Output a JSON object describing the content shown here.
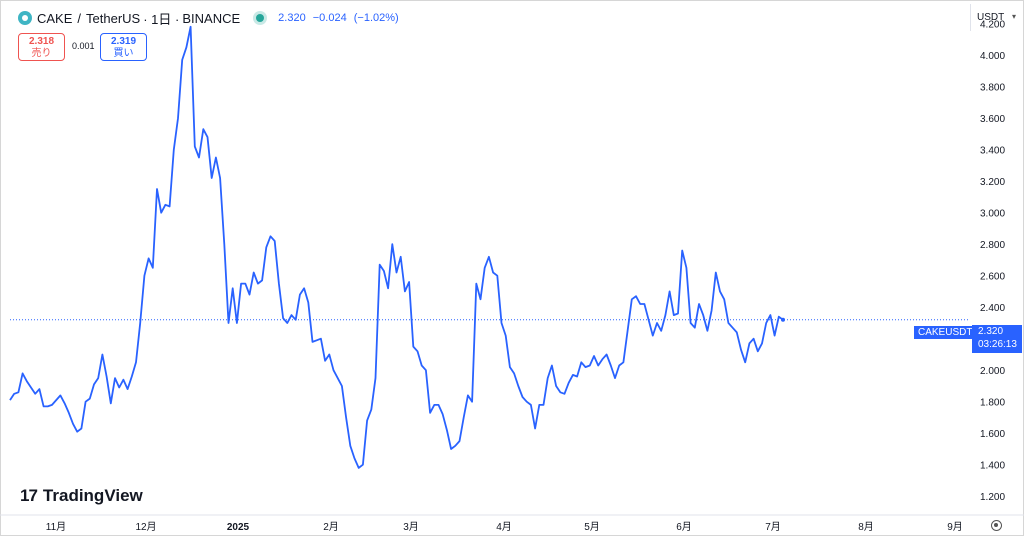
{
  "header": {
    "symbol": "CAKE",
    "separator": "/",
    "quote": "TetherUS",
    "interval": "· 1日 ·",
    "exchange": "BINANCE",
    "price": "2.320",
    "change": "−0.024",
    "change_pct": "(−1.02%)"
  },
  "trade": {
    "sell_price": "2.318",
    "sell_label": "売り",
    "spread": "0.001",
    "buy_price": "2.319",
    "buy_label": "買い"
  },
  "currency": "USDT",
  "brand": "TradingView",
  "last": {
    "label": "CAKEUSDT",
    "price": "2.320",
    "countdown": "03:26:13"
  },
  "colors": {
    "line": "#2962ff",
    "sell": "#ef5350",
    "buy": "#2962ff"
  },
  "chart_data": {
    "type": "line",
    "ylim": [
      1.1,
      4.35
    ],
    "yticks": [
      "4.200",
      "4.000",
      "3.800",
      "3.600",
      "3.400",
      "3.200",
      "3.000",
      "2.800",
      "2.600",
      "2.400",
      "2.200",
      "2.000",
      "1.800",
      "1.600",
      "1.400",
      "1.200"
    ],
    "xticks": [
      "11月",
      "12月",
      "2025",
      "2月",
      "3月",
      "4月",
      "5月",
      "6月",
      "7月",
      "8月",
      "9月"
    ],
    "series": [
      {
        "values": [
          [
            0,
            1.81
          ],
          [
            1,
            1.85
          ],
          [
            2,
            1.86
          ],
          [
            3,
            1.98
          ],
          [
            4,
            1.93
          ],
          [
            5,
            1.89
          ],
          [
            6,
            1.85
          ],
          [
            7,
            1.88
          ],
          [
            8,
            1.77
          ],
          [
            9,
            1.77
          ],
          [
            10,
            1.78
          ],
          [
            11,
            1.81
          ],
          [
            12,
            1.84
          ],
          [
            13,
            1.79
          ],
          [
            14,
            1.73
          ],
          [
            15,
            1.66
          ],
          [
            16,
            1.61
          ],
          [
            17,
            1.63
          ],
          [
            18,
            1.8
          ],
          [
            19,
            1.82
          ],
          [
            20,
            1.91
          ],
          [
            21,
            1.95
          ],
          [
            22,
            2.1
          ],
          [
            23,
            1.96
          ],
          [
            24,
            1.79
          ],
          [
            25,
            1.95
          ],
          [
            26,
            1.89
          ],
          [
            27,
            1.94
          ],
          [
            28,
            1.88
          ],
          [
            29,
            1.96
          ],
          [
            30,
            2.05
          ],
          [
            31,
            2.3
          ],
          [
            32,
            2.6
          ],
          [
            33,
            2.71
          ],
          [
            34,
            2.65
          ],
          [
            35,
            3.15
          ],
          [
            36,
            3.0
          ],
          [
            37,
            3.05
          ],
          [
            38,
            3.04
          ],
          [
            39,
            3.4
          ],
          [
            40,
            3.6
          ],
          [
            41,
            3.97
          ],
          [
            42,
            4.05
          ],
          [
            43,
            4.18
          ],
          [
            44,
            3.42
          ],
          [
            45,
            3.35
          ],
          [
            46,
            3.53
          ],
          [
            47,
            3.48
          ],
          [
            48,
            3.22
          ],
          [
            49,
            3.35
          ],
          [
            50,
            3.22
          ],
          [
            51,
            2.8
          ],
          [
            52,
            2.3
          ],
          [
            53,
            2.52
          ],
          [
            54,
            2.3
          ],
          [
            55,
            2.55
          ],
          [
            56,
            2.55
          ],
          [
            57,
            2.48
          ],
          [
            58,
            2.62
          ],
          [
            59,
            2.55
          ],
          [
            60,
            2.57
          ],
          [
            61,
            2.78
          ],
          [
            62,
            2.85
          ],
          [
            63,
            2.82
          ],
          [
            64,
            2.55
          ],
          [
            65,
            2.33
          ],
          [
            66,
            2.3
          ],
          [
            67,
            2.35
          ],
          [
            68,
            2.32
          ],
          [
            69,
            2.48
          ],
          [
            70,
            2.52
          ],
          [
            71,
            2.43
          ],
          [
            72,
            2.18
          ],
          [
            73,
            2.19
          ],
          [
            74,
            2.2
          ],
          [
            75,
            2.06
          ],
          [
            76,
            2.1
          ],
          [
            77,
            2.0
          ],
          [
            78,
            1.95
          ],
          [
            79,
            1.9
          ],
          [
            80,
            1.7
          ],
          [
            81,
            1.52
          ],
          [
            82,
            1.44
          ],
          [
            83,
            1.38
          ],
          [
            84,
            1.4
          ],
          [
            85,
            1.68
          ],
          [
            86,
            1.75
          ],
          [
            87,
            1.95
          ],
          [
            88,
            2.67
          ],
          [
            89,
            2.63
          ],
          [
            90,
            2.52
          ],
          [
            91,
            2.8
          ],
          [
            92,
            2.62
          ],
          [
            93,
            2.72
          ],
          [
            94,
            2.5
          ],
          [
            95,
            2.56
          ],
          [
            96,
            2.15
          ],
          [
            97,
            2.12
          ],
          [
            98,
            2.03
          ],
          [
            99,
            2.0
          ],
          [
            100,
            1.73
          ],
          [
            101,
            1.78
          ],
          [
            102,
            1.78
          ],
          [
            103,
            1.72
          ],
          [
            104,
            1.62
          ],
          [
            105,
            1.5
          ],
          [
            106,
            1.52
          ],
          [
            107,
            1.55
          ],
          [
            108,
            1.7
          ],
          [
            109,
            1.84
          ],
          [
            110,
            1.8
          ],
          [
            111,
            2.55
          ],
          [
            112,
            2.45
          ],
          [
            113,
            2.65
          ],
          [
            114,
            2.72
          ],
          [
            115,
            2.62
          ],
          [
            116,
            2.6
          ],
          [
            117,
            2.3
          ],
          [
            118,
            2.22
          ],
          [
            119,
            2.02
          ],
          [
            120,
            1.98
          ],
          [
            121,
            1.9
          ],
          [
            122,
            1.83
          ],
          [
            123,
            1.8
          ],
          [
            124,
            1.78
          ],
          [
            125,
            1.63
          ],
          [
            126,
            1.78
          ],
          [
            127,
            1.78
          ],
          [
            128,
            1.95
          ],
          [
            129,
            2.03
          ],
          [
            130,
            1.9
          ],
          [
            131,
            1.86
          ],
          [
            132,
            1.85
          ],
          [
            133,
            1.92
          ],
          [
            134,
            1.97
          ],
          [
            135,
            1.96
          ],
          [
            136,
            2.05
          ],
          [
            137,
            2.02
          ],
          [
            138,
            2.03
          ],
          [
            139,
            2.09
          ],
          [
            140,
            2.03
          ],
          [
            141,
            2.07
          ],
          [
            142,
            2.1
          ],
          [
            143,
            2.03
          ],
          [
            144,
            1.95
          ],
          [
            145,
            2.03
          ],
          [
            146,
            2.05
          ],
          [
            147,
            2.25
          ],
          [
            148,
            2.45
          ],
          [
            149,
            2.47
          ],
          [
            150,
            2.42
          ],
          [
            151,
            2.42
          ],
          [
            152,
            2.32
          ],
          [
            153,
            2.22
          ],
          [
            154,
            2.3
          ],
          [
            155,
            2.25
          ],
          [
            156,
            2.35
          ],
          [
            157,
            2.5
          ],
          [
            158,
            2.35
          ],
          [
            159,
            2.36
          ],
          [
            160,
            2.76
          ],
          [
            161,
            2.65
          ],
          [
            162,
            2.3
          ],
          [
            163,
            2.27
          ],
          [
            164,
            2.42
          ],
          [
            165,
            2.35
          ],
          [
            166,
            2.25
          ],
          [
            167,
            2.38
          ],
          [
            168,
            2.62
          ],
          [
            169,
            2.5
          ],
          [
            170,
            2.45
          ],
          [
            171,
            2.3
          ],
          [
            172,
            2.27
          ],
          [
            173,
            2.24
          ],
          [
            174,
            2.13
          ],
          [
            175,
            2.05
          ],
          [
            176,
            2.17
          ],
          [
            177,
            2.2
          ],
          [
            178,
            2.12
          ],
          [
            179,
            2.17
          ],
          [
            180,
            2.3
          ],
          [
            181,
            2.35
          ],
          [
            182,
            2.22
          ],
          [
            183,
            2.34
          ],
          [
            184,
            2.32
          ]
        ]
      }
    ]
  }
}
